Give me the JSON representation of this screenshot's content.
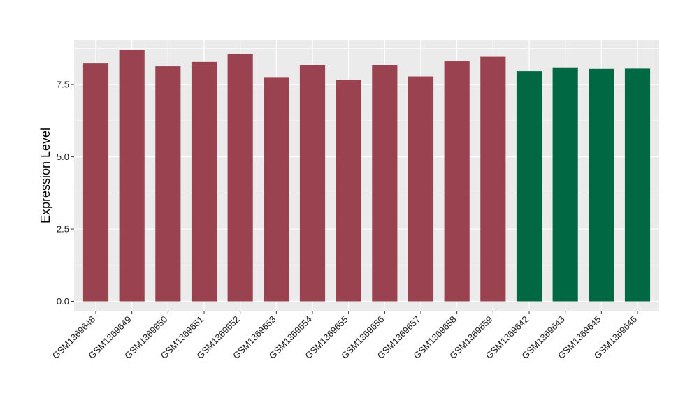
{
  "chart_data": {
    "type": "bar",
    "title": "",
    "xlabel": "",
    "ylabel": "Expression Level",
    "ylim": [
      -0.35,
      9.05
    ],
    "yticks": [
      0.0,
      2.5,
      5.0,
      7.5
    ],
    "ytick_labels": [
      "0.0",
      "2.5",
      "5.0",
      "7.5"
    ],
    "grid": true,
    "legend": "none",
    "categories": [
      "GSM1369648",
      "GSM1369649",
      "GSM1369650",
      "GSM1369651",
      "GSM1369652",
      "GSM1369653",
      "GSM1369654",
      "GSM1369655",
      "GSM1369656",
      "GSM1369657",
      "GSM1369658",
      "GSM1369659",
      "GSM1369642",
      "GSM1369643",
      "GSM1369645",
      "GSM1369646"
    ],
    "values": [
      8.25,
      8.7,
      8.13,
      8.28,
      8.55,
      7.76,
      8.18,
      7.66,
      8.18,
      7.78,
      8.3,
      8.48,
      7.96,
      8.09,
      8.04,
      8.05
    ],
    "bar_colors": [
      "#9a4250",
      "#9a4250",
      "#9a4250",
      "#9a4250",
      "#9a4250",
      "#9a4250",
      "#9a4250",
      "#9a4250",
      "#9a4250",
      "#9a4250",
      "#9a4250",
      "#9a4250",
      "#016844",
      "#016844",
      "#016844",
      "#016844"
    ],
    "panel_background": "#ebebeb",
    "grid_color": "#ffffff"
  }
}
